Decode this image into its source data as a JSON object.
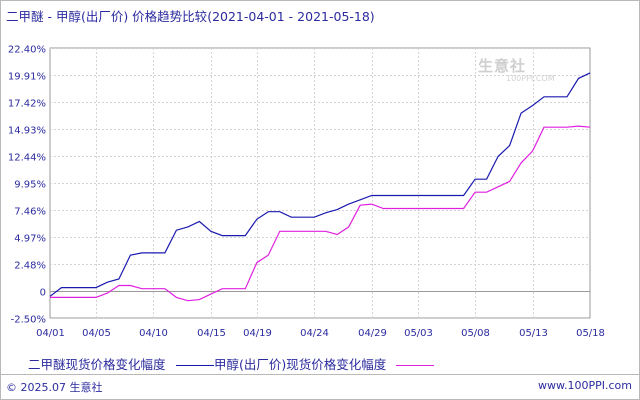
{
  "header": {
    "title_main": "二甲醚 - 甲醇(出厂价) 价格趋势比较",
    "date_range": "(2021-04-01 - 2021-05-18)"
  },
  "watermark": {
    "text": "生意社",
    "sub": "100PPI.COM"
  },
  "chart_data": {
    "type": "line",
    "y_tick_labels": [
      "22.40%",
      "19.91%",
      "17.42%",
      "14.93%",
      "12.44%",
      "9.95%",
      "7.46%",
      "4.97%",
      "2.48%",
      "0",
      "-2.50%"
    ],
    "y_ticks": [
      22.4,
      19.91,
      17.42,
      14.93,
      12.44,
      9.95,
      7.46,
      4.97,
      2.48,
      0,
      -2.5
    ],
    "ylim": [
      -2.5,
      22.4
    ],
    "x_tick_labels": [
      "04/01",
      "04/05",
      "04/10",
      "04/15",
      "04/19",
      "04/24",
      "04/29",
      "05/03",
      "05/08",
      "05/13",
      "05/18"
    ],
    "x_tick_days": [
      0,
      4,
      9,
      14,
      18,
      23,
      28,
      32,
      37,
      42,
      47
    ],
    "xlim_days": [
      0,
      47
    ],
    "grid": true,
    "series": [
      {
        "name": "二甲醚现货价格变化幅度",
        "color": "#1a1ab0",
        "points": [
          [
            0,
            -0.5
          ],
          [
            1,
            0.3
          ],
          [
            4,
            0.3
          ],
          [
            5,
            0.8
          ],
          [
            6,
            1.1
          ],
          [
            7,
            3.3
          ],
          [
            8,
            3.5
          ],
          [
            10,
            3.5
          ],
          [
            11,
            5.6
          ],
          [
            12,
            5.9
          ],
          [
            13,
            6.4
          ],
          [
            14,
            5.5
          ],
          [
            15,
            5.1
          ],
          [
            17,
            5.1
          ],
          [
            18,
            6.6
          ],
          [
            19,
            7.3
          ],
          [
            20,
            7.3
          ],
          [
            21,
            6.8
          ],
          [
            23,
            6.8
          ],
          [
            24,
            7.2
          ],
          [
            25,
            7.5
          ],
          [
            26,
            8.0
          ],
          [
            27,
            8.4
          ],
          [
            28,
            8.8
          ],
          [
            36,
            8.8
          ],
          [
            37,
            10.3
          ],
          [
            38,
            10.3
          ],
          [
            39,
            12.4
          ],
          [
            40,
            13.4
          ],
          [
            41,
            16.4
          ],
          [
            42,
            17.1
          ],
          [
            43,
            17.9
          ],
          [
            45,
            17.9
          ],
          [
            46,
            19.6
          ],
          [
            47,
            20.1
          ]
        ]
      },
      {
        "name": "甲醇(出厂价)现货价格变化幅度",
        "color": "#e020e0",
        "points": [
          [
            0,
            -0.6
          ],
          [
            4,
            -0.6
          ],
          [
            5,
            -0.2
          ],
          [
            6,
            0.5
          ],
          [
            7,
            0.5
          ],
          [
            8,
            0.2
          ],
          [
            10,
            0.2
          ],
          [
            11,
            -0.6
          ],
          [
            12,
            -0.9
          ],
          [
            13,
            -0.8
          ],
          [
            14,
            -0.3
          ],
          [
            15,
            0.2
          ],
          [
            17,
            0.2
          ],
          [
            18,
            2.6
          ],
          [
            19,
            3.3
          ],
          [
            20,
            5.5
          ],
          [
            24,
            5.5
          ],
          [
            25,
            5.2
          ],
          [
            26,
            5.9
          ],
          [
            27,
            7.9
          ],
          [
            28,
            8.0
          ],
          [
            29,
            7.6
          ],
          [
            36,
            7.6
          ],
          [
            37,
            9.1
          ],
          [
            38,
            9.1
          ],
          [
            39,
            9.6
          ],
          [
            40,
            10.1
          ],
          [
            41,
            11.8
          ],
          [
            42,
            12.9
          ],
          [
            43,
            15.1
          ],
          [
            45,
            15.1
          ],
          [
            46,
            15.2
          ],
          [
            47,
            15.1
          ]
        ]
      }
    ]
  },
  "legend": {
    "series1_label": "二甲醚现货价格变化幅度",
    "series2_label": "甲醇(出厂价)现货价格变化幅度"
  },
  "footer": {
    "copyright": "© 2025.07 生意社",
    "site": "www.100PPI.com"
  }
}
